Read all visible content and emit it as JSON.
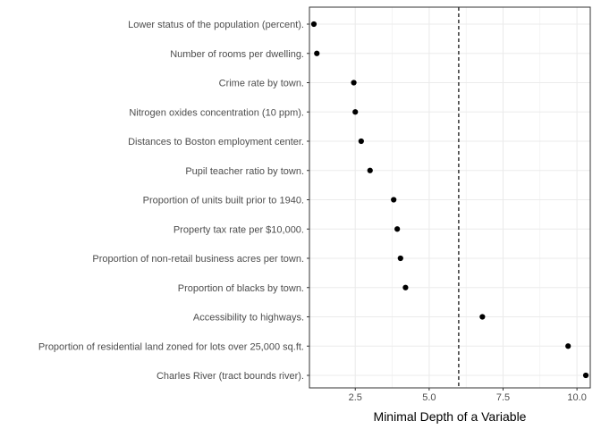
{
  "chart_data": {
    "type": "scatter",
    "title": "",
    "xlabel": "Minimal Depth of a Variable",
    "ylabel": "",
    "xlim": [
      0.95,
      10.45
    ],
    "xticks": [
      2.5,
      5.0,
      7.5,
      10.0
    ],
    "xtick_labels": [
      "2.5",
      "5.0",
      "7.5",
      "10.0"
    ],
    "grid": true,
    "legend": "none",
    "reference_line": {
      "x": 6.0,
      "style": "dashed"
    },
    "categories": [
      "Lower status of the population (percent).",
      "Number of rooms per dwelling.",
      "Crime rate by town.",
      "Nitrogen oxides concentration (10 ppm).",
      "Distances to Boston employment center.",
      "Pupil teacher ratio by town.",
      "Proportion of units built prior to 1940.",
      "Property tax rate per $10,000.",
      "Proportion of non-retail business acres per town.",
      "Proportion of blacks by town.",
      "Accessibility to highways.",
      "Proportion of residential land zoned for lots over 25,000 sq.ft.",
      "Charles River (tract bounds river)."
    ],
    "values": [
      1.1,
      1.2,
      2.45,
      2.5,
      2.7,
      3.0,
      3.8,
      3.92,
      4.03,
      4.2,
      6.8,
      9.7,
      10.3
    ],
    "colors": {
      "point": "#000000",
      "grid": "#ebebeb",
      "panel_border": "#333333",
      "reference": "#000000"
    }
  }
}
